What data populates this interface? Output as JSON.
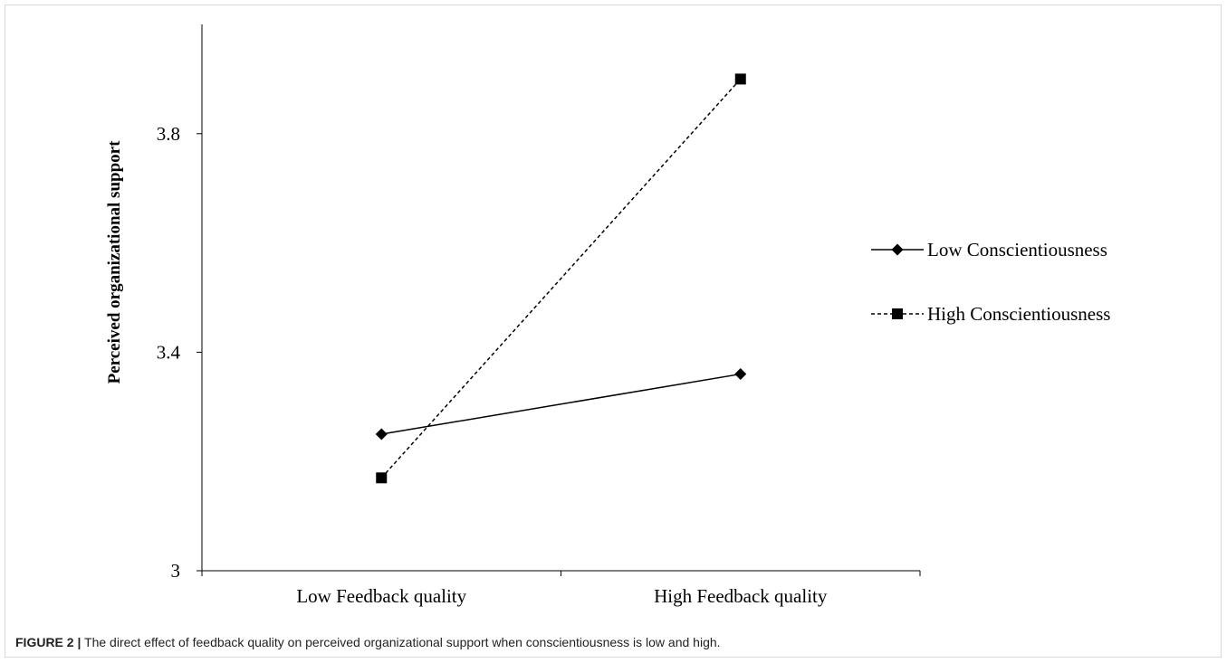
{
  "figure": {
    "label": "FIGURE 2",
    "separator": "|",
    "caption": "The direct effect of feedback quality on perceived organizational support when conscientiousness is low and high."
  },
  "chart_data": {
    "type": "line",
    "title": "",
    "xlabel": "",
    "ylabel": "Perceived organizational support",
    "categories": [
      "Low Feedback quality",
      "High Feedback quality"
    ],
    "ylim": [
      3,
      4
    ],
    "yticks": [
      3,
      3.4,
      3.8
    ],
    "ytick_labels": [
      "3",
      "3.4",
      "3.8"
    ],
    "grid": false,
    "legend_position": "right",
    "series": [
      {
        "name": "Low Conscientiousness",
        "values": [
          3.25,
          3.36
        ],
        "marker": "diamond",
        "line": "solid",
        "color": "#000000"
      },
      {
        "name": "High Conscientiousness",
        "values": [
          3.17,
          3.9
        ],
        "marker": "square",
        "line": "dashed",
        "color": "#000000"
      }
    ]
  }
}
